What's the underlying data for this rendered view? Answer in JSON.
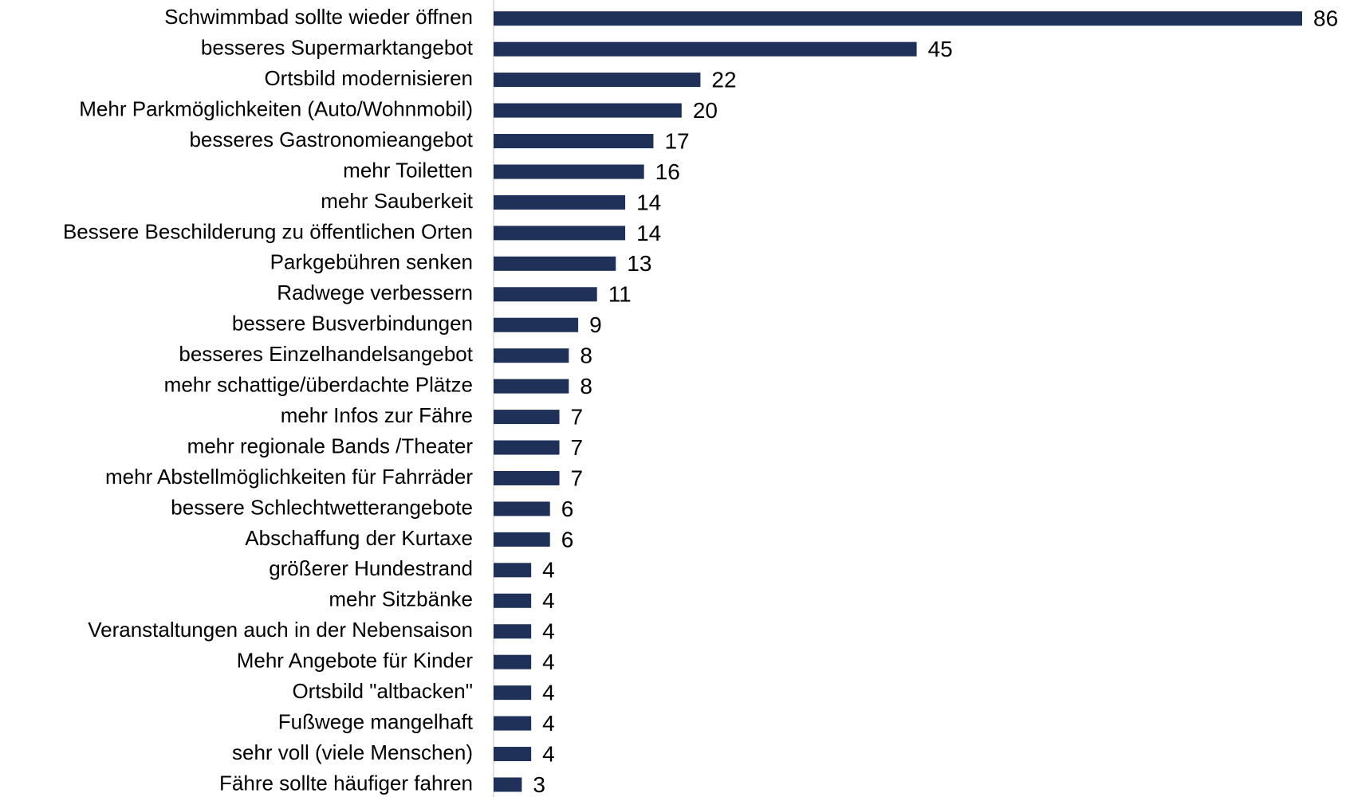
{
  "chart_data": {
    "type": "barh",
    "color": "#1f3158",
    "categories": [
      "Schwimmbad sollte wieder öffnen",
      "besseres Supermarktangebot",
      "Ortsbild modernisieren",
      "Mehr Parkmöglichkeiten (Auto/Wohnmobil)",
      "besseres Gastronomieangebot",
      "mehr Toiletten",
      "mehr Sauberkeit",
      "Bessere Beschilderung zu öffentlichen Orten",
      "Parkgebühren senken",
      "Radwege verbessern",
      "bessere Busverbindungen",
      "besseres Einzelhandelsangebot",
      "mehr schattige/überdachte Plätze",
      "mehr Infos zur Fähre",
      "mehr regionale Bands /Theater",
      "mehr Abstellmöglichkeiten für Fahrräder",
      "bessere Schlechtwetterangebote",
      "Abschaffung der Kurtaxe",
      "größerer Hundestrand",
      "mehr Sitzbänke",
      "Veranstaltungen auch in der Nebensaison",
      "Mehr Angebote für Kinder",
      "Ortsbild \"altbacken\"",
      "Fußwege mangelhaft",
      "sehr voll (viele Menschen)",
      "Fähre sollte häufiger fahren"
    ],
    "values": [
      86,
      45,
      22,
      20,
      17,
      16,
      14,
      14,
      13,
      11,
      9,
      8,
      8,
      7,
      7,
      7,
      6,
      6,
      4,
      4,
      4,
      4,
      4,
      4,
      4,
      3
    ]
  }
}
